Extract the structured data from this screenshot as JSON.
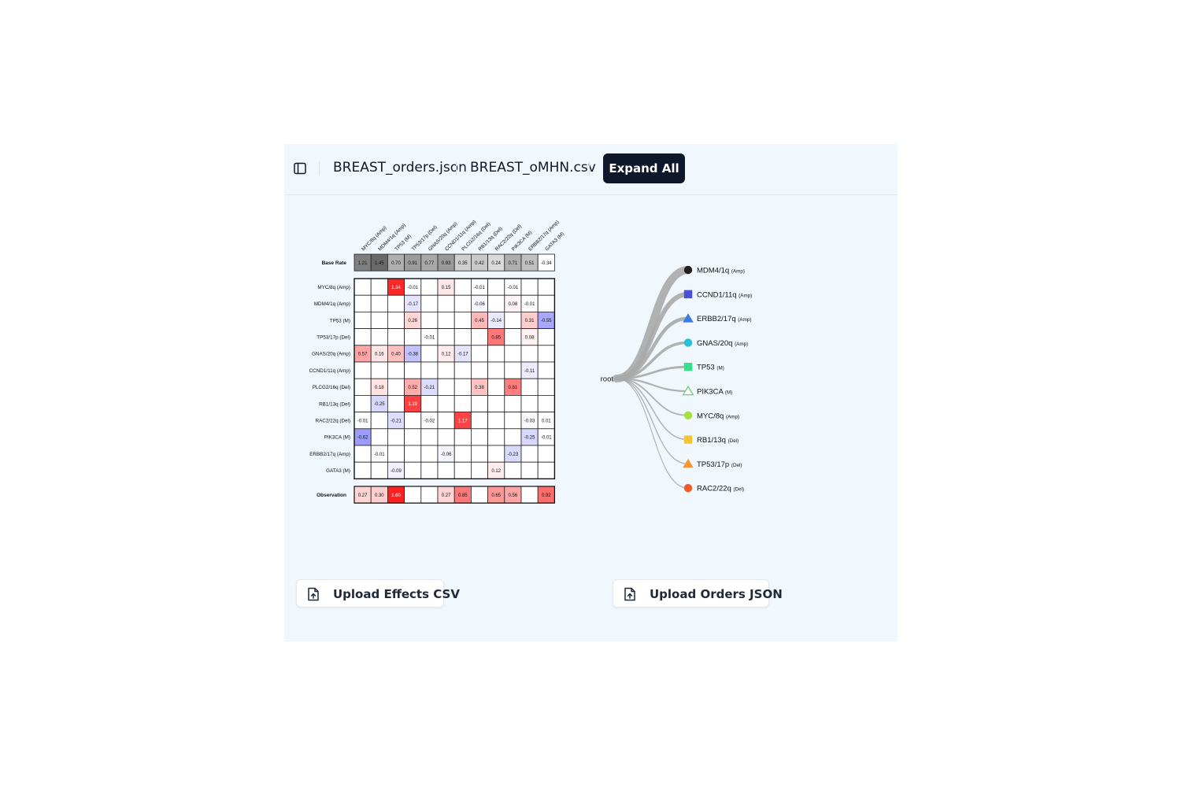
{
  "toolbar": {
    "sidebar_icon": "sidebar-panel-icon",
    "files": [
      "BREAST_orders.json",
      "BREAST_oMHN.csv"
    ],
    "expand_label": "Expand All"
  },
  "chart_data": [
    {
      "type": "heatmap",
      "columns": [
        "MYC/8q (Amp)",
        "MDM4/1q (Amp)",
        "TP53 (M)",
        "TP53/17p (Del)",
        "GNAS/20q (Amp)",
        "CCND1/11q (Amp)",
        "PLCG2/16q (Del)",
        "RB1/13q (Del)",
        "RAC2/22q (Del)",
        "PIK3CA (M)",
        "ERBB2/17q (Amp)",
        "GATA3 (M)"
      ],
      "rows": [
        "MYC/8q (Amp)",
        "MDM4/1q (Amp)",
        "TP53 (M)",
        "TP53/17p (Del)",
        "GNAS/20q (Amp)",
        "CCND1/11q (Amp)",
        "PLCG2/16q (Del)",
        "RB1/13q (Del)",
        "RAC2/22q (Del)",
        "PIK3CA (M)",
        "ERBB2/17q (Amp)",
        "GATA3 (M)"
      ],
      "base_rate_label": "Base Rate",
      "base_rate": [
        1.21,
        1.45,
        0.7,
        0.91,
        0.77,
        0.93,
        0.35,
        0.42,
        0.24,
        0.71,
        0.51,
        -0.34
      ],
      "effects": [
        [
          null,
          null,
          1.34,
          -0.01,
          null,
          0.15,
          null,
          -0.01,
          null,
          -0.01,
          null,
          null
        ],
        [
          null,
          null,
          null,
          -0.17,
          null,
          null,
          null,
          -0.06,
          null,
          0.08,
          -0.01,
          null
        ],
        [
          null,
          null,
          null,
          0.26,
          null,
          null,
          null,
          0.45,
          -0.14,
          null,
          0.31,
          -0.55
        ],
        [
          null,
          null,
          null,
          null,
          -0.01,
          null,
          null,
          null,
          0.85,
          null,
          0.08,
          null
        ],
        [
          0.57,
          0.16,
          0.4,
          -0.38,
          null,
          0.12,
          -0.17,
          null,
          null,
          null,
          null,
          null
        ],
        [
          null,
          null,
          null,
          null,
          null,
          null,
          null,
          null,
          null,
          null,
          -0.11,
          null
        ],
        [
          null,
          0.18,
          null,
          0.52,
          -0.21,
          null,
          null,
          0.38,
          null,
          0.81,
          null,
          null
        ],
        [
          null,
          -0.25,
          null,
          1.19,
          null,
          null,
          null,
          null,
          null,
          null,
          null,
          null
        ],
        [
          -0.01,
          null,
          -0.21,
          null,
          -0.02,
          null,
          1.17,
          null,
          null,
          null,
          -0.03,
          0.01
        ],
        [
          -0.62,
          null,
          null,
          null,
          null,
          null,
          null,
          null,
          null,
          null,
          -0.25,
          -0.01
        ],
        [
          null,
          -0.01,
          null,
          null,
          null,
          -0.06,
          null,
          null,
          null,
          -0.23,
          null,
          null
        ],
        [
          null,
          null,
          -0.09,
          null,
          null,
          null,
          null,
          null,
          0.12,
          null,
          null,
          null
        ]
      ],
      "observation_label": "Observation",
      "observation": [
        0.27,
        0.3,
        1.6,
        null,
        null,
        0.27,
        0.85,
        null,
        0.65,
        0.56,
        null,
        0.92
      ]
    },
    {
      "type": "tree",
      "root": "root",
      "nodes": [
        {
          "name": "MDM4/1q",
          "type": "(Amp)",
          "shape": "circle",
          "color": "#231f20",
          "weight": 10
        },
        {
          "name": "CCND1/11q",
          "type": "(Amp)",
          "shape": "square",
          "color": "#4a50d8",
          "weight": 6
        },
        {
          "name": "ERBB2/17q",
          "type": "(Amp)",
          "shape": "triangle",
          "color": "#3d7ae8",
          "weight": 4.5
        },
        {
          "name": "GNAS/20q",
          "type": "(Amp)",
          "shape": "circle",
          "color": "#27c0d6",
          "weight": 3.5
        },
        {
          "name": "TP53",
          "type": "(M)",
          "shape": "square",
          "color": "#35e08a",
          "weight": 2.8
        },
        {
          "name": "PIK3CA",
          "type": "(M)",
          "shape": "triangle-open",
          "color": "#66d17a",
          "weight": 2.2
        },
        {
          "name": "MYC/8q",
          "type": "(Amp)",
          "shape": "circle",
          "color": "#a4e23f",
          "weight": 1.8
        },
        {
          "name": "RB1/13q",
          "type": "(Del)",
          "shape": "square",
          "color": "#f5c531",
          "weight": 1.5
        },
        {
          "name": "TP53/17p",
          "type": "(Del)",
          "shape": "triangle",
          "color": "#f7952d",
          "weight": 1.3
        },
        {
          "name": "RAC2/22q",
          "type": "(Del)",
          "shape": "circle",
          "color": "#f05a24",
          "weight": 1.1
        }
      ]
    }
  ],
  "uploads": {
    "effects_label": "Upload Effects CSV",
    "orders_label": "Upload Orders JSON",
    "icon": "file-upload-icon"
  }
}
